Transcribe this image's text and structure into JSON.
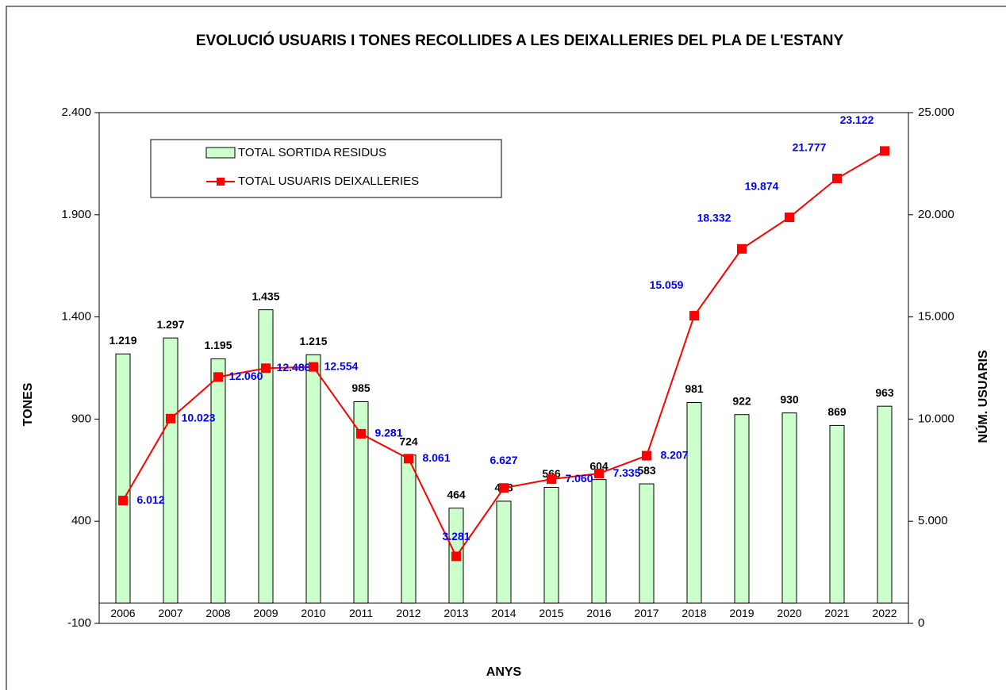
{
  "chart_data": {
    "type": "bar-line",
    "title": "EVOLUCIÓ USUARIS I TONES RECOLLIDES A LES DEIXALLERIES DEL PLA DE L'ESTANY",
    "x_label": "ANYS",
    "y_label": "TONES",
    "y2_label": "NÚM. USUARIS",
    "categories": [
      "2006",
      "2007",
      "2008",
      "2009",
      "2010",
      "2011",
      "2012",
      "2013",
      "2014",
      "2015",
      "2016",
      "2017",
      "2018",
      "2019",
      "2020",
      "2021",
      "2022"
    ],
    "series": [
      {
        "name": "TOTAL SORTIDA RESIDUS",
        "color": "#ccffcc",
        "type": "bar",
        "values": [
          1219,
          1297,
          1195,
          1435,
          1215,
          985,
          724,
          464,
          498,
          566,
          604,
          583,
          981,
          922,
          930,
          869,
          963
        ],
        "value_labels": [
          "1.219",
          "1.297",
          "1.195",
          "1.435",
          "1.215",
          "985",
          "724",
          "464",
          "498",
          "566",
          "604",
          "583",
          "981",
          "922",
          "930",
          "869",
          "963"
        ]
      },
      {
        "name": "TOTAL USUARIS DEIXALLERIES",
        "color": "#ff0000",
        "type": "line",
        "axis": "y2",
        "values": [
          6012,
          10023,
          12060,
          12488,
          12554,
          9281,
          8061,
          3281,
          6627,
          7060,
          7335,
          8207,
          15059,
          18332,
          19874,
          21777,
          23122
        ],
        "value_labels": [
          "6.012",
          "10.023",
          "12.060",
          "12.488",
          "12.554",
          "9.281",
          "8.061",
          "3.281",
          "6.627",
          "7.060",
          "7.335",
          "8.207",
          "15.059",
          "18.332",
          "19.874",
          "21.777",
          "23.122"
        ]
      }
    ],
    "ylim": [
      -100,
      2400
    ],
    "yticks": [
      -100,
      400,
      900,
      {
        "value": 1400,
        "label": "1.400"
      },
      {
        "value": 1900,
        "label": "1.900"
      },
      {
        "value": 2400,
        "label": "2.400"
      }
    ],
    "y2lim": [
      0,
      25000
    ],
    "y2ticks": [
      0,
      {
        "value": 5000,
        "label": "5.000"
      },
      {
        "value": 10000,
        "label": "10.000"
      },
      {
        "value": 15000,
        "label": "15.000"
      },
      {
        "value": 20000,
        "label": "20.000"
      },
      {
        "value": 25000,
        "label": "25.000"
      }
    ],
    "legend": "top-left",
    "grid": false
  }
}
